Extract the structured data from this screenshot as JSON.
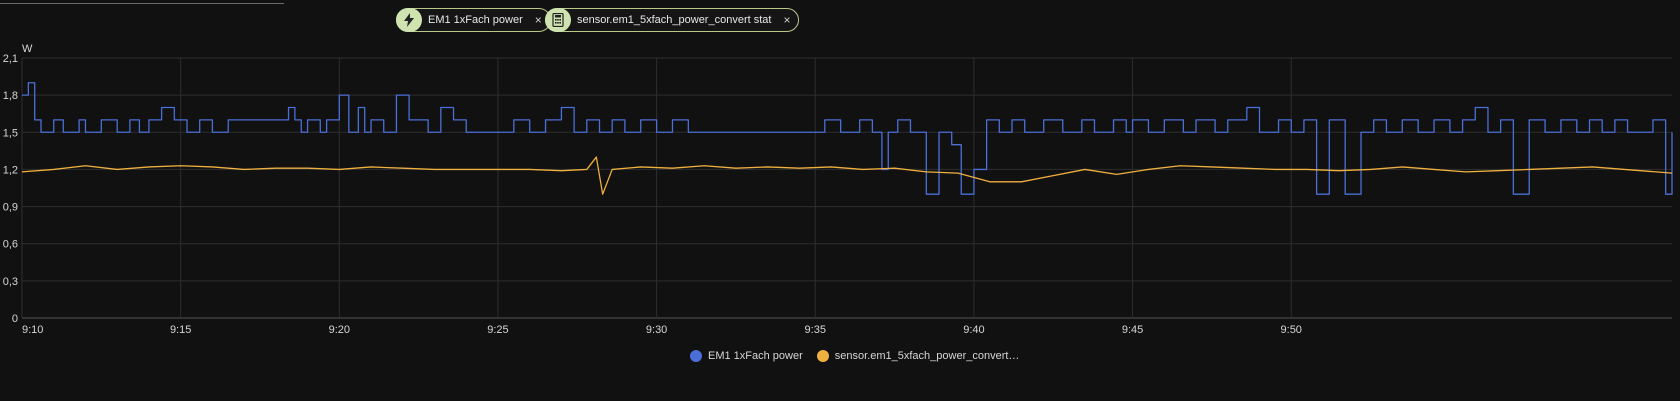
{
  "chips": [
    {
      "label": "EM1 1xFach power",
      "icon": "lightning-icon"
    },
    {
      "label": "sensor.em1_5xfach_power_convert stat",
      "icon": "calculator-icon"
    }
  ],
  "close_glyph": "×",
  "chart_data": {
    "type": "line",
    "ylabel": "W",
    "ylim": [
      0,
      2.1
    ],
    "y_ticks": [
      "0",
      "0,3",
      "0,6",
      "0,9",
      "1,2",
      "1,5",
      "1,8",
      "2,1"
    ],
    "x_ticks": [
      "9:10",
      "9:15",
      "9:20",
      "9:25",
      "9:30",
      "9:35",
      "9:40",
      "9:45",
      "9:50"
    ],
    "grid": true,
    "legend_position": "bottom",
    "series": [
      {
        "name": "EM1 1xFach power",
        "legend_label": "EM1 1xFach power",
        "color": "#4a6fd8",
        "step": true,
        "points": [
          [
            0,
            1.8
          ],
          [
            0.2,
            1.9
          ],
          [
            0.4,
            1.6
          ],
          [
            0.6,
            1.5
          ],
          [
            1.0,
            1.6
          ],
          [
            1.3,
            1.5
          ],
          [
            1.8,
            1.6
          ],
          [
            2.0,
            1.5
          ],
          [
            2.5,
            1.6
          ],
          [
            3.0,
            1.5
          ],
          [
            3.4,
            1.6
          ],
          [
            3.7,
            1.5
          ],
          [
            4.0,
            1.6
          ],
          [
            4.4,
            1.7
          ],
          [
            4.8,
            1.6
          ],
          [
            5.2,
            1.5
          ],
          [
            5.6,
            1.6
          ],
          [
            6.0,
            1.5
          ],
          [
            6.5,
            1.6
          ],
          [
            7.0,
            1.6
          ],
          [
            8.0,
            1.6
          ],
          [
            8.4,
            1.7
          ],
          [
            8.6,
            1.6
          ],
          [
            8.8,
            1.5
          ],
          [
            9.0,
            1.6
          ],
          [
            9.4,
            1.5
          ],
          [
            9.6,
            1.6
          ],
          [
            10.0,
            1.8
          ],
          [
            10.3,
            1.5
          ],
          [
            10.6,
            1.7
          ],
          [
            10.8,
            1.5
          ],
          [
            11.0,
            1.6
          ],
          [
            11.4,
            1.5
          ],
          [
            11.8,
            1.8
          ],
          [
            12.2,
            1.6
          ],
          [
            12.8,
            1.5
          ],
          [
            13.2,
            1.7
          ],
          [
            13.6,
            1.6
          ],
          [
            14.0,
            1.5
          ],
          [
            15.0,
            1.5
          ],
          [
            15.5,
            1.6
          ],
          [
            16.0,
            1.5
          ],
          [
            16.5,
            1.6
          ],
          [
            17.0,
            1.7
          ],
          [
            17.4,
            1.5
          ],
          [
            17.8,
            1.6
          ],
          [
            18.2,
            1.5
          ],
          [
            18.6,
            1.6
          ],
          [
            19.0,
            1.5
          ],
          [
            19.5,
            1.6
          ],
          [
            20.0,
            1.5
          ],
          [
            20.5,
            1.6
          ],
          [
            21.0,
            1.5
          ],
          [
            22.0,
            1.5
          ],
          [
            23.0,
            1.5
          ],
          [
            24.0,
            1.5
          ],
          [
            25.0,
            1.5
          ],
          [
            25.3,
            1.6
          ],
          [
            25.8,
            1.5
          ],
          [
            26.4,
            1.6
          ],
          [
            26.8,
            1.5
          ],
          [
            27.1,
            1.2
          ],
          [
            27.3,
            1.5
          ],
          [
            27.6,
            1.6
          ],
          [
            28.0,
            1.5
          ],
          [
            28.5,
            1.0
          ],
          [
            28.9,
            1.5
          ],
          [
            29.3,
            1.4
          ],
          [
            29.6,
            1.0
          ],
          [
            30.0,
            1.2
          ],
          [
            30.4,
            1.6
          ],
          [
            30.8,
            1.5
          ],
          [
            31.2,
            1.6
          ],
          [
            31.6,
            1.5
          ],
          [
            32.2,
            1.6
          ],
          [
            32.8,
            1.5
          ],
          [
            33.4,
            1.6
          ],
          [
            33.8,
            1.5
          ],
          [
            34.4,
            1.6
          ],
          [
            34.8,
            1.5
          ],
          [
            35.0,
            1.6
          ],
          [
            35.5,
            1.5
          ],
          [
            36.0,
            1.6
          ],
          [
            36.6,
            1.5
          ],
          [
            37.0,
            1.6
          ],
          [
            37.6,
            1.5
          ],
          [
            38.0,
            1.6
          ],
          [
            38.6,
            1.7
          ],
          [
            39.0,
            1.5
          ],
          [
            39.6,
            1.6
          ],
          [
            40.0,
            1.5
          ],
          [
            40.4,
            1.6
          ],
          [
            40.8,
            1.0
          ],
          [
            41.2,
            1.6
          ],
          [
            41.7,
            1.0
          ],
          [
            42.2,
            1.5
          ],
          [
            42.6,
            1.6
          ],
          [
            43.0,
            1.5
          ],
          [
            43.5,
            1.6
          ],
          [
            44.0,
            1.5
          ],
          [
            44.5,
            1.6
          ],
          [
            45.0,
            1.5
          ],
          [
            45.4,
            1.6
          ],
          [
            45.8,
            1.7
          ],
          [
            46.2,
            1.5
          ],
          [
            46.6,
            1.6
          ],
          [
            47.0,
            1.0
          ],
          [
            47.5,
            1.6
          ],
          [
            48.0,
            1.5
          ],
          [
            48.5,
            1.6
          ],
          [
            49.0,
            1.5
          ],
          [
            49.4,
            1.6
          ],
          [
            49.8,
            1.5
          ],
          [
            50.2,
            1.6
          ],
          [
            50.6,
            1.5
          ],
          [
            51.0,
            1.5
          ],
          [
            51.4,
            1.6
          ],
          [
            51.8,
            1.0
          ],
          [
            52.0,
            1.5
          ]
        ]
      },
      {
        "name": "sensor.em1_5xfach_power_convert stat",
        "legend_label": "sensor.em1_5xfach_power_convert…",
        "color": "#f0b040",
        "step": false,
        "points": [
          [
            0,
            1.18
          ],
          [
            1,
            1.2
          ],
          [
            2,
            1.23
          ],
          [
            3,
            1.2
          ],
          [
            4,
            1.22
          ],
          [
            5,
            1.23
          ],
          [
            6,
            1.22
          ],
          [
            7,
            1.2
          ],
          [
            8,
            1.21
          ],
          [
            9,
            1.21
          ],
          [
            10,
            1.2
          ],
          [
            11,
            1.22
          ],
          [
            12,
            1.21
          ],
          [
            13,
            1.2
          ],
          [
            14,
            1.2
          ],
          [
            15,
            1.2
          ],
          [
            16,
            1.2
          ],
          [
            17,
            1.19
          ],
          [
            17.8,
            1.2
          ],
          [
            18.1,
            1.3
          ],
          [
            18.3,
            1.0
          ],
          [
            18.6,
            1.2
          ],
          [
            19.5,
            1.22
          ],
          [
            20.5,
            1.21
          ],
          [
            21.5,
            1.23
          ],
          [
            22.5,
            1.21
          ],
          [
            23.5,
            1.22
          ],
          [
            24.5,
            1.21
          ],
          [
            25.5,
            1.22
          ],
          [
            26.5,
            1.2
          ],
          [
            27.5,
            1.21
          ],
          [
            28.5,
            1.18
          ],
          [
            29.5,
            1.17
          ],
          [
            30.5,
            1.1
          ],
          [
            31.5,
            1.1
          ],
          [
            32.5,
            1.15
          ],
          [
            33.5,
            1.2
          ],
          [
            34.5,
            1.16
          ],
          [
            35.5,
            1.2
          ],
          [
            36.5,
            1.23
          ],
          [
            37.5,
            1.22
          ],
          [
            38.5,
            1.21
          ],
          [
            39.5,
            1.2
          ],
          [
            40.5,
            1.2
          ],
          [
            41.5,
            1.19
          ],
          [
            42.5,
            1.2
          ],
          [
            43.5,
            1.22
          ],
          [
            44.5,
            1.2
          ],
          [
            45.5,
            1.18
          ],
          [
            46.5,
            1.19
          ],
          [
            47.5,
            1.2
          ],
          [
            48.5,
            1.21
          ],
          [
            49.5,
            1.22
          ],
          [
            50.5,
            1.2
          ],
          [
            51.5,
            1.18
          ],
          [
            52.0,
            1.17
          ]
        ]
      }
    ]
  }
}
